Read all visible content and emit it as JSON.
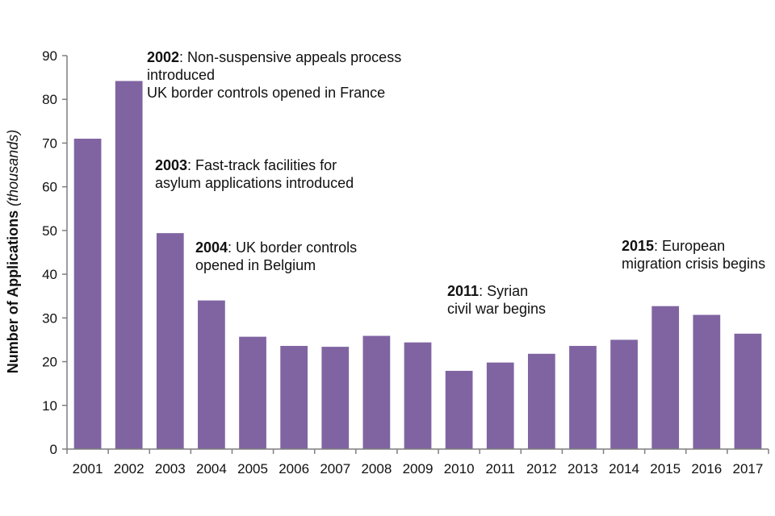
{
  "chart_data": {
    "type": "bar",
    "title": "",
    "categories": [
      "2001",
      "2002",
      "2003",
      "2004",
      "2005",
      "2006",
      "2007",
      "2008",
      "2009",
      "2010",
      "2011",
      "2012",
      "2013",
      "2014",
      "2015",
      "2016",
      "2017"
    ],
    "values": [
      71.0,
      84.2,
      49.4,
      34.0,
      25.7,
      23.6,
      23.4,
      25.9,
      24.4,
      17.9,
      19.8,
      21.8,
      23.6,
      25.0,
      32.7,
      30.7,
      26.4
    ],
    "bar_color": "#8064A2",
    "xlabel": "",
    "ylabel": "Number of Applications",
    "ylabel_italic": "(thousands)",
    "ylim": [
      0,
      90
    ],
    "yticks": [
      "0",
      "10",
      "20",
      "30",
      "40",
      "50",
      "60",
      "70",
      "80",
      "90"
    ],
    "annotations": [
      {
        "year": "2002",
        "text": ": Non-suspensive appeals process",
        "lines": [
          "introduced",
          "UK border controls opened in France"
        ]
      },
      {
        "year": "2003",
        "text": ": Fast-track facilities for",
        "lines": [
          "asylum applications introduced"
        ]
      },
      {
        "year": "2004",
        "text": ": UK border controls",
        "lines": [
          "opened in Belgium"
        ]
      },
      {
        "year": "2011",
        "text": ": Syrian",
        "lines": [
          "civil war begins"
        ]
      },
      {
        "year": "2015",
        "text": ": European",
        "lines": [
          "migration crisis begins"
        ]
      }
    ]
  }
}
